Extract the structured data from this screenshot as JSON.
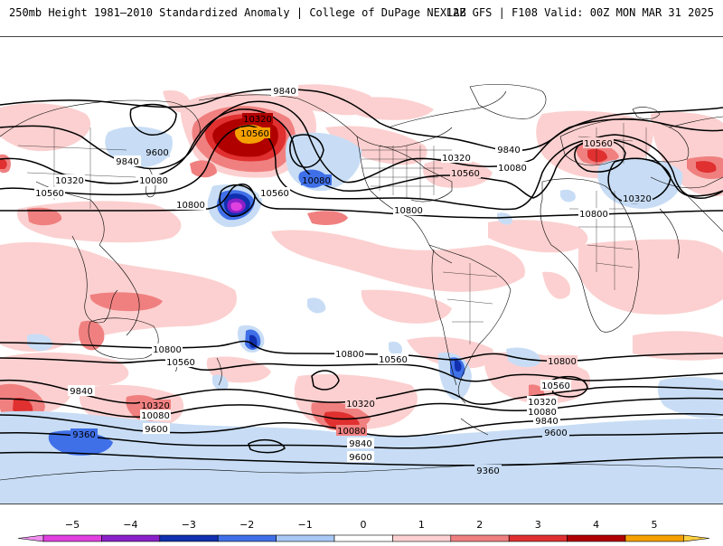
{
  "header": {
    "title": "250mb Height 1981–2010 Standardized Anomaly | College of DuPage NEXLAB",
    "run_info": "12Z GFS | F108 Valid: 00Z MON MAR 31 2025"
  },
  "map": {
    "variable": "250mb geopotential height with standardized anomaly shading",
    "contour_interval": 240,
    "contour_labels": [
      "9840",
      "10560",
      "10320",
      "9600",
      "9840",
      "10080",
      "10320",
      "10560",
      "10800",
      "10080",
      "10560",
      "9840",
      "10320",
      "10560",
      "10080",
      "10800",
      "10800",
      "10560",
      "10320",
      "10800",
      "10560",
      "10800",
      "10560",
      "10800",
      "10560",
      "9840",
      "10320",
      "10080",
      "9600",
      "9360",
      "10320",
      "10080",
      "9840",
      "9600",
      "10800",
      "10560",
      "10320",
      "10080",
      "9840",
      "9600",
      "9360"
    ],
    "colors": {
      "neg5": "#e040e0",
      "neg4": "#8a20c8",
      "neg3": "#1030b0",
      "neg2": "#4070e8",
      "neg1": "#c8ddf5",
      "pos1": "#fcd0d0",
      "pos2": "#f08080",
      "pos3": "#e03030",
      "pos4": "#b00000",
      "pos5": "#f5a000",
      "contour": "#000000",
      "coastline": "#000000"
    }
  },
  "colorbar": {
    "labels": [
      "−5",
      "−4",
      "−3",
      "−2",
      "−1",
      "0",
      "1",
      "2",
      "3",
      "4",
      "5"
    ],
    "segment_colors": [
      "#f090f0",
      "#e040e0",
      "#8a20c8",
      "#1030b0",
      "#4070e8",
      "#a8c8f5",
      "#ffffff",
      "#fcd0d0",
      "#f08080",
      "#e03030",
      "#b00000",
      "#f5a000",
      "#ffd040"
    ]
  }
}
